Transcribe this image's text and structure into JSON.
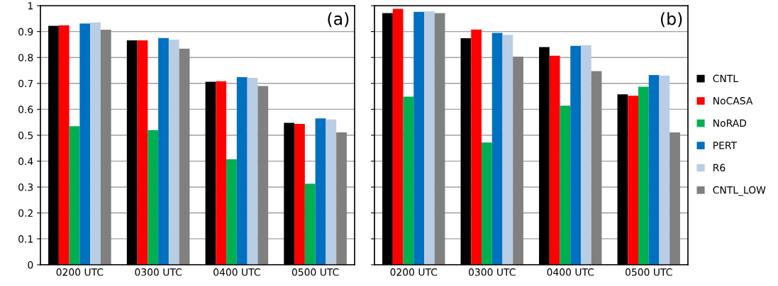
{
  "chart_data": [
    {
      "type": "bar",
      "categories": [
        "0200 UTC",
        "0300 UTC",
        "0400 UTC",
        "0500 UTC"
      ],
      "ylim": [
        0,
        1
      ],
      "yticks": [
        0,
        0.1,
        0.2,
        0.3,
        0.4,
        0.5,
        0.6,
        0.7,
        0.8,
        0.9,
        1
      ],
      "grid": "y",
      "annotations": [
        "(a)"
      ],
      "series": [
        {
          "color": "#000000",
          "values": [
            0.922,
            0.866,
            0.706,
            0.548
          ]
        },
        {
          "color": "#ff0000",
          "values": [
            0.924,
            0.866,
            0.708,
            0.544
          ]
        },
        {
          "color": "#00b050",
          "values": [
            0.535,
            0.52,
            0.407,
            0.313
          ]
        },
        {
          "color": "#0070c0",
          "values": [
            0.931,
            0.875,
            0.724,
            0.565
          ]
        },
        {
          "color": "#b9cde5",
          "values": [
            0.935,
            0.869,
            0.721,
            0.561
          ]
        },
        {
          "color": "#808080",
          "values": [
            0.907,
            0.834,
            0.69,
            0.511
          ]
        }
      ]
    },
    {
      "type": "bar",
      "categories": [
        "0200 UTC",
        "0300 UTC",
        "0400 UTC",
        "0500 UTC"
      ],
      "ylim": [
        0,
        1
      ],
      "yticks": [
        0,
        0.1,
        0.2,
        0.3,
        0.4,
        0.5,
        0.6,
        0.7,
        0.8,
        0.9,
        1
      ],
      "tick_labels": "x",
      "grid": "y",
      "legend": "right",
      "annotations": [
        "(b)"
      ],
      "series": [
        {
          "name": "CNTL",
          "color": "#000000",
          "values": [
            0.971,
            0.874,
            0.84,
            0.658
          ]
        },
        {
          "name": "NoCASA",
          "color": "#ff0000",
          "values": [
            0.988,
            0.908,
            0.807,
            0.652
          ]
        },
        {
          "name": "NoRAD",
          "color": "#00b050",
          "values": [
            0.649,
            0.472,
            0.614,
            0.687
          ]
        },
        {
          "name": "PERT",
          "color": "#0070c0",
          "values": [
            0.976,
            0.895,
            0.845,
            0.732
          ]
        },
        {
          "name": "R6",
          "color": "#b9cde5",
          "values": [
            0.978,
            0.887,
            0.847,
            0.73
          ]
        },
        {
          "name": "CNTL_LOW",
          "color": "#808080",
          "values": [
            0.971,
            0.803,
            0.747,
            0.511
          ]
        }
      ]
    }
  ]
}
